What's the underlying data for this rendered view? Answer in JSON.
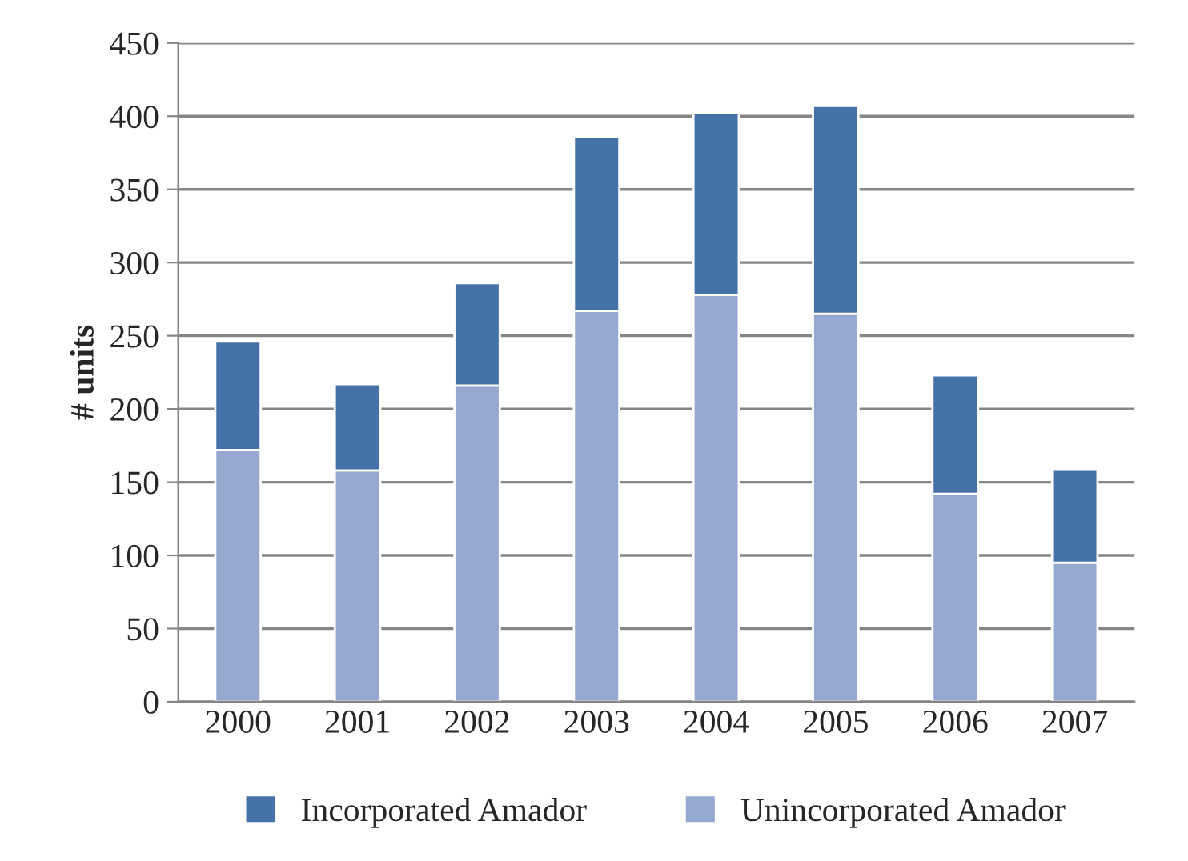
{
  "chart_data": {
    "type": "bar",
    "stacked": true,
    "ylabel": "# units",
    "categories": [
      "2000",
      "2001",
      "2002",
      "2003",
      "2004",
      "2005",
      "2006",
      "2007"
    ],
    "series": [
      {
        "name": "Unincorporated Amador",
        "color": "#95a9d0",
        "values": [
          172,
          158,
          216,
          267,
          278,
          265,
          142,
          95
        ]
      },
      {
        "name": "Incorporated Amador",
        "color": "#4472a8",
        "values": [
          74,
          59,
          70,
          119,
          124,
          142,
          81,
          64
        ]
      }
    ],
    "ylim": [
      0,
      450
    ],
    "yticks": [
      0,
      50,
      100,
      150,
      200,
      250,
      300,
      350,
      400,
      450
    ],
    "grid": "y",
    "legend": "bottom"
  }
}
